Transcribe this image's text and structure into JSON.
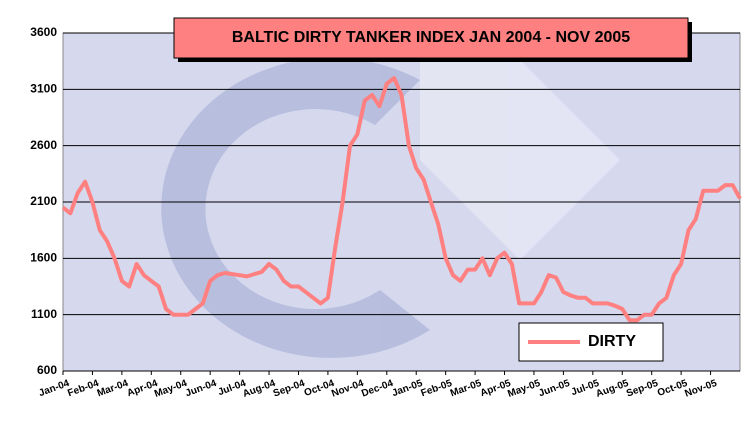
{
  "chart_data": {
    "type": "line",
    "title": "BALTIC DIRTY TANKER INDEX JAN 2004 - NOV 2005",
    "categories": [
      "Jan-04",
      null,
      null,
      null,
      "Feb-04",
      null,
      null,
      null,
      "Mar-04",
      null,
      null,
      null,
      "Apr-04",
      null,
      null,
      null,
      "May-04",
      null,
      null,
      null,
      "Jun-04",
      null,
      null,
      null,
      "Jul-04",
      null,
      null,
      null,
      "Aug-04",
      null,
      null,
      null,
      "Sep-04",
      null,
      null,
      null,
      "Oct-04",
      null,
      null,
      null,
      "Nov-04",
      null,
      null,
      null,
      "Dec-04",
      null,
      null,
      null,
      "Jan-05",
      null,
      null,
      null,
      "Feb-05",
      null,
      null,
      null,
      "Mar-05",
      null,
      null,
      null,
      "Apr-05",
      null,
      null,
      null,
      "May-05",
      null,
      null,
      null,
      "Jun-05",
      null,
      null,
      null,
      "Jul-05",
      null,
      null,
      null,
      "Aug-05",
      null,
      null,
      null,
      "Sep-05",
      null,
      null,
      null,
      "Oct-05",
      null,
      null,
      null,
      "Nov-05",
      null,
      null,
      null,
      null
    ],
    "series": [
      {
        "name": "DIRTY",
        "color": "#ff8080",
        "values": [
          2050,
          2000,
          2180,
          2280,
          2100,
          1850,
          1750,
          1600,
          1400,
          1350,
          1550,
          1450,
          1400,
          1350,
          1150,
          1100,
          1100,
          1100,
          1150,
          1200,
          1400,
          1450,
          1470,
          1460,
          1450,
          1440,
          1460,
          1480,
          1550,
          1500,
          1400,
          1350,
          1350,
          1300,
          1250,
          1200,
          1250,
          1700,
          2100,
          2600,
          2700,
          3000,
          3050,
          2950,
          3150,
          3200,
          3050,
          2600,
          2400,
          2300,
          2100,
          1900,
          1600,
          1450,
          1400,
          1500,
          1500,
          1600,
          1450,
          1600,
          1650,
          1550,
          1200,
          1200,
          1200,
          1300,
          1450,
          1430,
          1300,
          1270,
          1250,
          1250,
          1200,
          1200,
          1200,
          1180,
          1150,
          1050,
          1050,
          1100,
          1100,
          1200,
          1250,
          1450,
          1550,
          1850,
          1950,
          2200,
          2200,
          2200,
          2250,
          2250,
          2130
        ]
      }
    ],
    "ylim": [
      600,
      3600
    ],
    "yticks": [
      600,
      1100,
      1600,
      2100,
      2600,
      3100,
      3600
    ],
    "grid": true,
    "legend": "lower right"
  }
}
